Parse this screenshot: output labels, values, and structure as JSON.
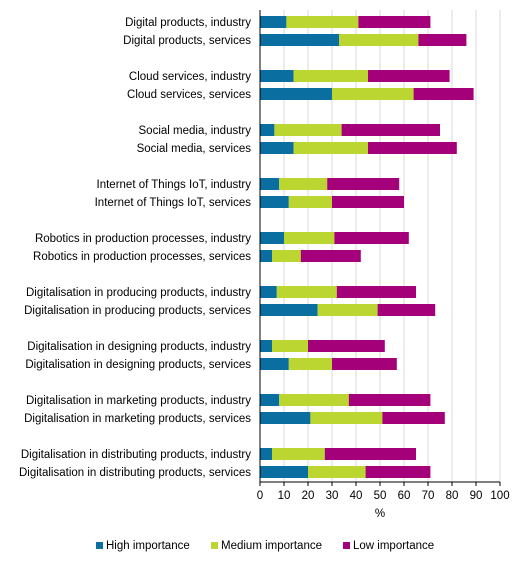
{
  "chart_data": {
    "type": "bar",
    "orientation": "horizontal",
    "stacked": true,
    "categories": [
      "Digital products, industry",
      "Digital products, services",
      "Cloud services, industry",
      "Cloud services, services",
      "Social media, industry",
      "Social media, services",
      "Internet of Things IoT, industry",
      "Internet of Things IoT, services",
      "Robotics in production processes, industry",
      "Robotics in production processes, services",
      "Digitalisation in producing products, industry",
      "Digitalisation in producing products, services",
      "Digitalisation in designing products, industry",
      "Digitalisation in designing products, services",
      "Digitalisation in marketing products, industry",
      "Digitalisation in marketing products, services",
      "Digitalisation in distributing products, industry",
      "Digitalisation in distributing products, services"
    ],
    "series": [
      {
        "name": "High importance",
        "color": "#0a6fa0",
        "values": [
          11,
          33,
          14,
          30,
          6,
          14,
          8,
          12,
          10,
          5,
          7,
          24,
          5,
          12,
          8,
          21,
          5,
          20
        ]
      },
      {
        "name": "Medium importance",
        "color": "#bcd631",
        "values": [
          30,
          33,
          31,
          34,
          28,
          31,
          20,
          18,
          21,
          12,
          25,
          25,
          15,
          18,
          29,
          30,
          22,
          24
        ]
      },
      {
        "name": "Low importance",
        "color": "#a3007a",
        "values": [
          30,
          20,
          34,
          25,
          41,
          37,
          30,
          30,
          31,
          25,
          33,
          24,
          32,
          27,
          34,
          26,
          38,
          27
        ]
      }
    ],
    "xlabel": "%",
    "ylabel": "",
    "xlim": [
      0,
      100
    ],
    "xticks": [
      0,
      10,
      20,
      30,
      40,
      50,
      60,
      70,
      80,
      90,
      100
    ],
    "grid": "vertical",
    "legend_position": "bottom"
  }
}
